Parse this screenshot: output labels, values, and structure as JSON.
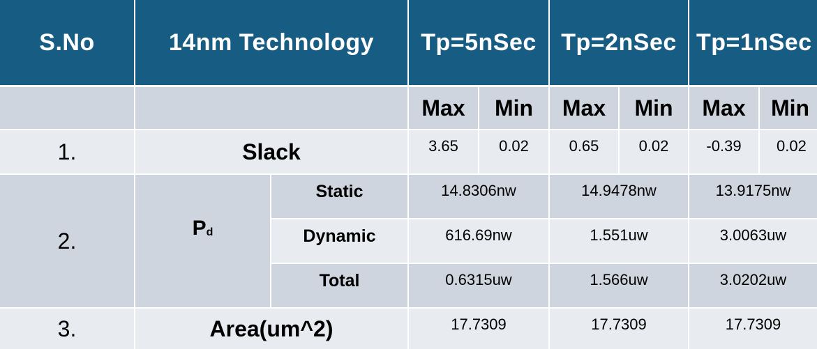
{
  "header": {
    "sno": "S.No",
    "technology": "14nm Technology",
    "tp5": "Tp=5nSec",
    "tp2": "Tp=2nSec",
    "tp1": "Tp=1nSec"
  },
  "subheader": {
    "max": "Max",
    "min": "Min"
  },
  "rows": {
    "slack": {
      "sno": "1.",
      "label": "Slack",
      "tp5_max": "3.65",
      "tp5_min": "0.02",
      "tp2_max": "0.65",
      "tp2_min": "0.02",
      "tp1_max": "-0.39",
      "tp1_min": "0.02"
    },
    "pd": {
      "sno": "2.",
      "label_main": "P",
      "label_sub": "d",
      "static": {
        "label": "Static",
        "tp5": "14.8306nw",
        "tp2": "14.9478nw",
        "tp1": "13.9175nw"
      },
      "dynamic": {
        "label": "Dynamic",
        "tp5": "616.69nw",
        "tp2": "1.551uw",
        "tp1": "3.0063uw"
      },
      "total": {
        "label": "Total",
        "tp5": "0.6315uw",
        "tp2": "1.566uw",
        "tp1": "3.0202uw"
      }
    },
    "area": {
      "sno": "3.",
      "label": "Area(um^2)",
      "tp5": "17.7309",
      "tp2": "17.7309",
      "tp1": "17.7309"
    }
  },
  "colors": {
    "header_bg": "#175d83",
    "header_text": "#ffffff",
    "row_dark": "#cfd5de",
    "row_light": "#e8ebef"
  }
}
